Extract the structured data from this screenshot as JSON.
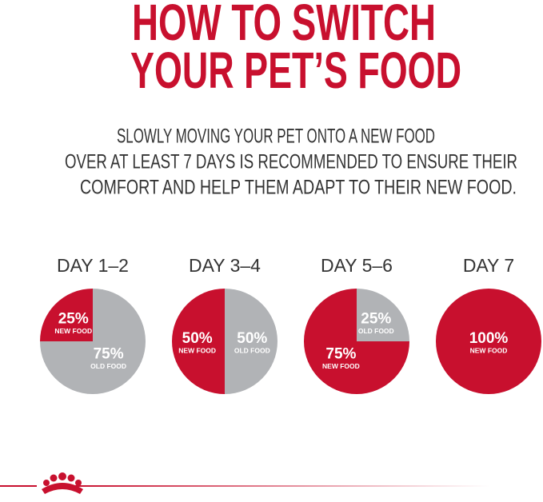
{
  "header": {
    "title_lines": [
      "HOW TO SWITCH",
      "YOUR PET’S FOOD"
    ],
    "intro_lines": [
      "SLOWLY MOVING YOUR PET ONTO A NEW FOOD",
      "OVER AT LEAST 7 DAYS IS RECOMMENDED TO ENSURE THEIR",
      "COMFORT AND HELP THEM ADAPT TO THEIR NEW FOOD."
    ]
  },
  "chart_data": [
    {
      "type": "pie",
      "title": "DAY 1–2",
      "categories": [
        "NEW FOOD",
        "OLD FOOD"
      ],
      "values": [
        25,
        75
      ],
      "value_labels": [
        "25%",
        "75%"
      ],
      "colors": [
        "#c8102e",
        "#b1b3b6"
      ]
    },
    {
      "type": "pie",
      "title": "DAY 3–4",
      "categories": [
        "NEW FOOD",
        "OLD FOOD"
      ],
      "values": [
        50,
        50
      ],
      "value_labels": [
        "50%",
        "50%"
      ],
      "colors": [
        "#c8102e",
        "#b1b3b6"
      ]
    },
    {
      "type": "pie",
      "title": "DAY 5–6",
      "categories": [
        "NEW FOOD",
        "OLD FOOD"
      ],
      "values": [
        75,
        25
      ],
      "value_labels": [
        "75%",
        "25%"
      ],
      "colors": [
        "#c8102e",
        "#b1b3b6"
      ]
    },
    {
      "type": "pie",
      "title": "DAY 7",
      "categories": [
        "NEW FOOD"
      ],
      "values": [
        100
      ],
      "value_labels": [
        "100%"
      ],
      "colors": [
        "#c8102e"
      ]
    }
  ]
}
